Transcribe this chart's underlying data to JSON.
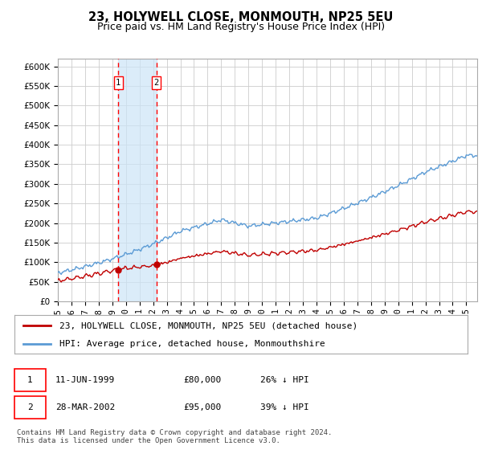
{
  "title": "23, HOLYWELL CLOSE, MONMOUTH, NP25 5EU",
  "subtitle": "Price paid vs. HM Land Registry's House Price Index (HPI)",
  "legend_line1": "23, HOLYWELL CLOSE, MONMOUTH, NP25 5EU (detached house)",
  "legend_line2": "HPI: Average price, detached house, Monmouthshire",
  "table_row1_num": "1",
  "table_row1_date": "11-JUN-1999",
  "table_row1_price": "£80,000",
  "table_row1_hpi": "26% ↓ HPI",
  "table_row2_num": "2",
  "table_row2_date": "28-MAR-2002",
  "table_row2_price": "£95,000",
  "table_row2_hpi": "39% ↓ HPI",
  "footer": "Contains HM Land Registry data © Crown copyright and database right 2024.\nThis data is licensed under the Open Government Licence v3.0.",
  "sale1_year": 1999.44,
  "sale1_price": 80000,
  "sale2_year": 2002.23,
  "sale2_price": 95000,
  "hpi_color": "#5b9bd5",
  "sale_color": "#c00000",
  "vline_color": "#ff0000",
  "shade_color": "#cce5f7",
  "ylim_min": 0,
  "ylim_max": 620000,
  "ytick_step": 50000,
  "xlabel_rotation": 90,
  "background_color": "#ffffff",
  "grid_color": "#cccccc",
  "title_fontsize": 10.5,
  "subtitle_fontsize": 9,
  "tick_fontsize": 7.5,
  "legend_fontsize": 8
}
